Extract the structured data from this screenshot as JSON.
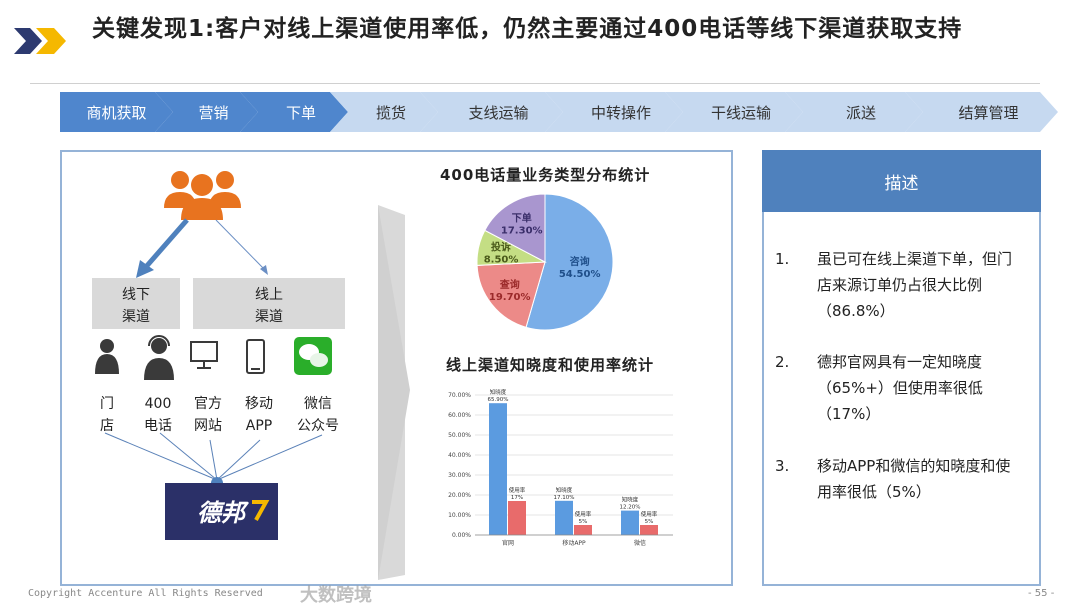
{
  "header": {
    "title": "关键发现1:客户对线上渠道使用率低，仍然主要通过400电话等线下渠道获取支持"
  },
  "process": [
    {
      "label": "商机获取",
      "active": true
    },
    {
      "label": "营销",
      "active": true
    },
    {
      "label": "下单",
      "active": true
    },
    {
      "label": "揽货",
      "active": false
    },
    {
      "label": "支线运输",
      "active": false
    },
    {
      "label": "中转操作",
      "active": false
    },
    {
      "label": "干线运输",
      "active": false
    },
    {
      "label": "派送",
      "active": false
    },
    {
      "label": "结算管理",
      "active": false
    }
  ],
  "channels": {
    "offline": "线下\n渠道",
    "online": "线上\n渠道",
    "items": [
      {
        "label": "门\n店",
        "icon": "person-icon"
      },
      {
        "label": "400\n电话",
        "icon": "headset-agent-icon"
      },
      {
        "label": "官方\n网站",
        "icon": "monitor-icon"
      },
      {
        "label": "移动\nAPP",
        "icon": "phone-icon"
      },
      {
        "label": "微信\n公众号",
        "icon": "wechat-icon"
      }
    ],
    "logo": "德邦"
  },
  "chart_data": [
    {
      "type": "pie",
      "title": "400电话量业务类型分布统计",
      "categories": [
        "咨询",
        "查询",
        "投诉",
        "下单"
      ],
      "values": [
        54.5,
        19.7,
        8.5,
        17.3
      ],
      "labels": [
        "54.50%",
        "19.70%",
        "8.50%",
        "17.30%"
      ],
      "colors": [
        "#7aaee8",
        "#ec8a88",
        "#c4de84",
        "#a996cf"
      ]
    },
    {
      "type": "bar",
      "title": "线上渠道知晓度和使用率统计",
      "categories": [
        "官网",
        "移动APP",
        "微信"
      ],
      "ylim": [
        0,
        70
      ],
      "yticks": [
        "0.00%",
        "10.00%",
        "20.00%",
        "30.00%",
        "40.00%",
        "50.00%",
        "60.00%",
        "70.00%"
      ],
      "series": [
        {
          "name": "知晓度",
          "values": [
            65.9,
            17.1,
            12.2
          ],
          "labels": [
            "65.90%",
            "17.10%",
            "12.20%"
          ],
          "color": "#5b9be0"
        },
        {
          "name": "使用率",
          "values": [
            17,
            5,
            5
          ],
          "labels": [
            "17%",
            "5%",
            "5%"
          ],
          "color": "#e86b6b"
        }
      ],
      "grid": true
    }
  ],
  "description": {
    "title": "描述",
    "items": [
      {
        "num": "1.",
        "text": "虽已可在线上渠道下单，但门店来源订单仍占很大比例（86.8%）"
      },
      {
        "num": "2.",
        "text": "德邦官网具有一定知晓度（65%+）但使用率很低（17%）"
      },
      {
        "num": "3.",
        "text": "移动APP和微信的知晓度和使用率很低（5%）"
      }
    ]
  },
  "footer": {
    "copyright": "Copyright Accenture All Rights Reserved",
    "page": "- 55 -",
    "watermark": "大数跨境"
  },
  "colors": {
    "active": "#4f86cd",
    "inactive": "#c6d9f0",
    "accent": "#4f81bd"
  }
}
